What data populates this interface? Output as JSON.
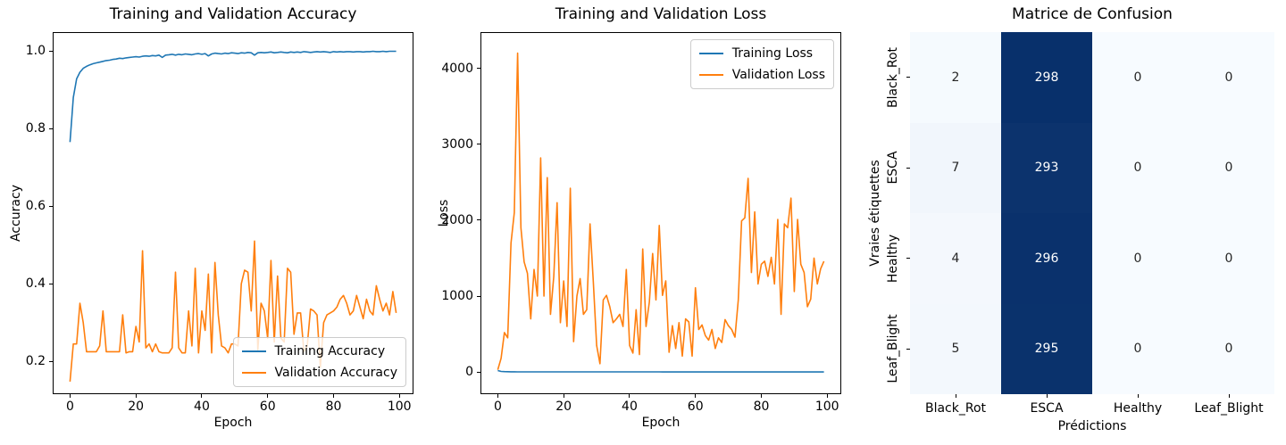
{
  "chart_data": [
    {
      "type": "line",
      "title": "Training and Validation Accuracy",
      "xlabel": "Epoch",
      "ylabel": "Accuracy",
      "xlim": [
        -5,
        104
      ],
      "ylim": [
        0.118,
        1.046
      ],
      "xticks": [
        0,
        20,
        40,
        60,
        80,
        100
      ],
      "xtick_labels": [
        "0",
        "20",
        "40",
        "60",
        "80",
        "100"
      ],
      "yticks": [
        0.2,
        0.4,
        0.6,
        0.8,
        1.0
      ],
      "ytick_labels": [
        "0.2",
        "0.4",
        "0.6",
        "0.8",
        "1.0"
      ],
      "grid": false,
      "legend": {
        "position": "lower-right",
        "entries": [
          {
            "label": "Training Accuracy",
            "color": "#1f77b4"
          },
          {
            "label": "Validation Accuracy",
            "color": "#ff7f0e"
          }
        ]
      },
      "series": [
        {
          "name": "Training Accuracy",
          "color": "#1f77b4",
          "values": [
            0.765,
            0.88,
            0.928,
            0.945,
            0.955,
            0.96,
            0.964,
            0.967,
            0.969,
            0.971,
            0.973,
            0.975,
            0.976,
            0.978,
            0.979,
            0.981,
            0.98,
            0.982,
            0.983,
            0.984,
            0.985,
            0.984,
            0.986,
            0.987,
            0.986,
            0.988,
            0.987,
            0.989,
            0.983,
            0.989,
            0.99,
            0.991,
            0.989,
            0.991,
            0.99,
            0.992,
            0.991,
            0.99,
            0.992,
            0.993,
            0.991,
            0.993,
            0.987,
            0.992,
            0.994,
            0.993,
            0.992,
            0.994,
            0.993,
            0.995,
            0.994,
            0.993,
            0.995,
            0.994,
            0.996,
            0.995,
            0.989,
            0.995,
            0.996,
            0.995,
            0.996,
            0.997,
            0.995,
            0.996,
            0.997,
            0.996,
            0.995,
            0.997,
            0.996,
            0.997,
            0.996,
            0.998,
            0.997,
            0.996,
            0.997,
            0.998,
            0.997,
            0.998,
            0.997,
            0.996,
            0.998,
            0.997,
            0.998,
            0.997,
            0.998,
            0.998,
            0.997,
            0.998,
            0.998,
            0.997,
            0.998,
            0.998,
            0.999,
            0.998,
            0.998,
            0.999,
            0.998,
            0.999,
            0.999,
            0.999
          ]
        },
        {
          "name": "Validation Accuracy",
          "color": "#ff7f0e",
          "values": [
            0.148,
            0.245,
            0.245,
            0.35,
            0.3,
            0.225,
            0.225,
            0.225,
            0.225,
            0.24,
            0.33,
            0.225,
            0.225,
            0.225,
            0.225,
            0.225,
            0.32,
            0.222,
            0.225,
            0.225,
            0.29,
            0.25,
            0.485,
            0.235,
            0.245,
            0.225,
            0.245,
            0.225,
            0.222,
            0.222,
            0.222,
            0.235,
            0.43,
            0.235,
            0.222,
            0.222,
            0.33,
            0.24,
            0.44,
            0.222,
            0.33,
            0.28,
            0.425,
            0.222,
            0.455,
            0.32,
            0.24,
            0.235,
            0.222,
            0.245,
            0.245,
            0.24,
            0.4,
            0.435,
            0.43,
            0.33,
            0.51,
            0.23,
            0.35,
            0.33,
            0.26,
            0.46,
            0.25,
            0.42,
            0.26,
            0.25,
            0.44,
            0.43,
            0.27,
            0.325,
            0.325,
            0.225,
            0.24,
            0.335,
            0.33,
            0.32,
            0.185,
            0.3,
            0.32,
            0.325,
            0.33,
            0.34,
            0.36,
            0.37,
            0.35,
            0.32,
            0.33,
            0.37,
            0.34,
            0.31,
            0.36,
            0.33,
            0.32,
            0.395,
            0.36,
            0.33,
            0.35,
            0.32,
            0.38,
            0.325
          ]
        }
      ]
    },
    {
      "type": "line",
      "title": "Training and Validation Loss",
      "xlabel": "Epoch",
      "ylabel": "Loss",
      "xlim": [
        -5,
        104
      ],
      "ylim": [
        -280,
        4465
      ],
      "xticks": [
        0,
        20,
        40,
        60,
        80,
        100
      ],
      "xtick_labels": [
        "0",
        "20",
        "40",
        "60",
        "80",
        "100"
      ],
      "yticks": [
        0,
        1000,
        2000,
        3000,
        4000
      ],
      "ytick_labels": [
        "0",
        "1000",
        "2000",
        "3000",
        "4000"
      ],
      "grid": false,
      "legend": {
        "position": "upper-right",
        "entries": [
          {
            "label": "Training Loss",
            "color": "#1f77b4"
          },
          {
            "label": "Validation Loss",
            "color": "#ff7f0e"
          }
        ]
      },
      "series": [
        {
          "name": "Training Loss",
          "color": "#1f77b4",
          "values": [
            20,
            8,
            5,
            4,
            3,
            3,
            2,
            2,
            2,
            2,
            2,
            2,
            2,
            2,
            2,
            2,
            2,
            2,
            2,
            2,
            2,
            2,
            2,
            2,
            2,
            2,
            2,
            2,
            2,
            2,
            2,
            2,
            2,
            2,
            2,
            2,
            2,
            2,
            2,
            2,
            2,
            2,
            2,
            2,
            2,
            2,
            2,
            2,
            2,
            2,
            1,
            1,
            1,
            1,
            1,
            1,
            1,
            1,
            1,
            1,
            1,
            1,
            1,
            1,
            1,
            1,
            1,
            1,
            1,
            1,
            1,
            1,
            1,
            1,
            1,
            1,
            1,
            1,
            1,
            1,
            1,
            1,
            1,
            1,
            1,
            1,
            1,
            1,
            1,
            1,
            1,
            1,
            1,
            1,
            1,
            1,
            1,
            1,
            1,
            1
          ]
        },
        {
          "name": "Validation Loss",
          "color": "#ff7f0e",
          "values": [
            30,
            180,
            520,
            450,
            1700,
            2100,
            4200,
            1900,
            1450,
            1300,
            700,
            1350,
            1000,
            2820,
            1000,
            2560,
            760,
            1260,
            2230,
            650,
            1200,
            600,
            2420,
            400,
            1000,
            1230,
            760,
            820,
            1950,
            1180,
            350,
            110,
            950,
            1010,
            860,
            650,
            700,
            760,
            600,
            1350,
            350,
            250,
            820,
            230,
            1620,
            600,
            920,
            1560,
            950,
            1930,
            1010,
            1200,
            260,
            610,
            310,
            650,
            210,
            700,
            660,
            210,
            1110,
            560,
            620,
            480,
            420,
            560,
            310,
            450,
            390,
            690,
            610,
            560,
            460,
            950,
            1990,
            2030,
            2550,
            1310,
            2110,
            1160,
            1420,
            1460,
            1260,
            1510,
            1160,
            2010,
            760,
            1950,
            1900,
            2290,
            1060,
            2010,
            1420,
            1310,
            860,
            960,
            1500,
            1160,
            1360,
            1460
          ]
        }
      ]
    },
    {
      "type": "heatmap",
      "title": "Matrice de Confusion",
      "xlabel": "Prédictions",
      "ylabel": "Vraies étiquettes",
      "row_labels": [
        "Black_Rot",
        "ESCA",
        "Healthy",
        "Leaf_Blight"
      ],
      "col_labels": [
        "Black_Rot",
        "ESCA",
        "Healthy",
        "Leaf_Blight"
      ],
      "values": [
        [
          2,
          298,
          0,
          0
        ],
        [
          7,
          293,
          0,
          0
        ],
        [
          4,
          296,
          0,
          0
        ],
        [
          5,
          295,
          0,
          0
        ]
      ],
      "vmax": 298,
      "cmap_light": "#f7fbff",
      "cmap_dark": "#08306b",
      "cell_text_light": "#ffffff",
      "cell_text_dark": "#262626"
    }
  ]
}
